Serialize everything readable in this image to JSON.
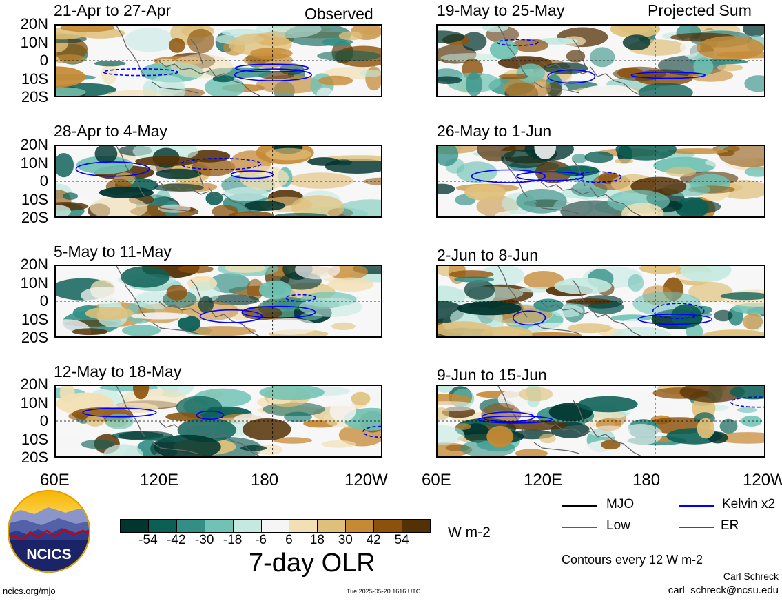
{
  "header": {
    "observed_label": "Observed",
    "projected_label": "Projected Sum"
  },
  "panels": {
    "observed": [
      {
        "title": "21-Apr to 27-Apr"
      },
      {
        "title": "28-Apr to 4-May"
      },
      {
        "title": "5-May to 11-May"
      },
      {
        "title": "12-May to 18-May"
      }
    ],
    "projected": [
      {
        "title": "19-May to 25-May"
      },
      {
        "title": "26-May to 1-Jun"
      },
      {
        "title": "2-Jun to 8-Jun"
      },
      {
        "title": "9-Jun to 15-Jun"
      }
    ]
  },
  "lat_ticks": [
    "20N",
    "10N",
    "0",
    "10S",
    "20S"
  ],
  "lon_ticks": [
    "60E",
    "120E",
    "180",
    "120W"
  ],
  "colorbar": {
    "ticks": [
      "-54",
      "-42",
      "-30",
      "-18",
      "-6",
      "6",
      "18",
      "30",
      "42",
      "54"
    ],
    "units": "W m-2",
    "colors": [
      "#01352f",
      "#0b5f55",
      "#338f85",
      "#6fc2b4",
      "#c3e9e1",
      "#f5f5f5",
      "#f2dfb4",
      "#dfc07a",
      "#c68a35",
      "#8c520b",
      "#543005"
    ]
  },
  "title": "7-day OLR",
  "legend": {
    "items": [
      {
        "label": "MJO",
        "color": "#000000"
      },
      {
        "label": "Kelvin x2",
        "color": "#0000ff"
      },
      {
        "label": "Low",
        "color": "#8a2be2"
      },
      {
        "label": "ER",
        "color": "#ff0000"
      }
    ],
    "contour_note": "Contours every 12 W m-2"
  },
  "footer": {
    "site": "ncics.org/mjo",
    "timestamp": "Tue 2025-05-20 1616 UTC",
    "author": "Carl Schreck",
    "email": "carl_schreck@ncsu.edu"
  },
  "logo": {
    "text": "NCICS"
  }
}
